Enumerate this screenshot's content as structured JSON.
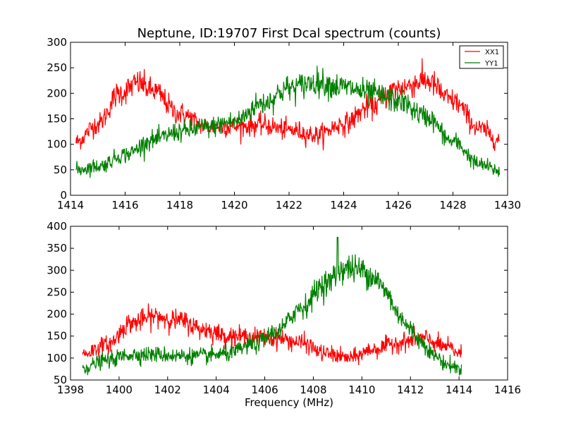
{
  "chart_data": [
    {
      "type": "line",
      "title": "Neptune, ID:19707 First Dcal spectrum (counts)",
      "xlabel": "",
      "ylabel": "",
      "xlim": [
        1414,
        1430
      ],
      "ylim": [
        0,
        300
      ],
      "xticks": [
        "1414",
        "1416",
        "1418",
        "1420",
        "1422",
        "1424",
        "1426",
        "1428",
        "1430"
      ],
      "yticks": [
        "0",
        "50",
        "100",
        "150",
        "200",
        "250",
        "300"
      ],
      "legend_position": "top-right",
      "grid": false,
      "x_start": 1414.2,
      "x_end": 1429.7,
      "noise": 9,
      "series": [
        {
          "name": "XX1",
          "color": "#ff0000",
          "anchors": [
            [
              1414.2,
              105
            ],
            [
              1415.0,
              140
            ],
            [
              1415.8,
              200
            ],
            [
              1416.5,
              220
            ],
            [
              1417.0,
              205
            ],
            [
              1418.0,
              160
            ],
            [
              1419.0,
              135
            ],
            [
              1420.0,
              135
            ],
            [
              1421.0,
              138
            ],
            [
              1422.0,
              128
            ],
            [
              1423.0,
              118
            ],
            [
              1424.0,
              140
            ],
            [
              1425.0,
              175
            ],
            [
              1426.0,
              210
            ],
            [
              1427.0,
              225
            ],
            [
              1428.0,
              185
            ],
            [
              1429.0,
              130
            ],
            [
              1429.7,
              108
            ]
          ]
        },
        {
          "name": "YY1",
          "color": "#007f00",
          "anchors": [
            [
              1414.2,
              50
            ],
            [
              1415.0,
              57
            ],
            [
              1416.0,
              80
            ],
            [
              1417.0,
              108
            ],
            [
              1418.0,
              125
            ],
            [
              1419.0,
              133
            ],
            [
              1420.0,
              145
            ],
            [
              1421.0,
              180
            ],
            [
              1422.0,
              210
            ],
            [
              1423.0,
              222
            ],
            [
              1424.0,
              212
            ],
            [
              1425.0,
              200
            ],
            [
              1426.0,
              185
            ],
            [
              1427.0,
              155
            ],
            [
              1428.0,
              105
            ],
            [
              1429.0,
              60
            ],
            [
              1429.7,
              48
            ]
          ]
        }
      ]
    },
    {
      "type": "line",
      "title": "",
      "xlabel": "Frequency (MHz)",
      "ylabel": "",
      "xlim": [
        1398,
        1416
      ],
      "ylim": [
        50,
        400
      ],
      "xticks": [
        "1398",
        "1400",
        "1402",
        "1404",
        "1406",
        "1408",
        "1410",
        "1412",
        "1414",
        "1416"
      ],
      "yticks": [
        "50",
        "100",
        "150",
        "200",
        "250",
        "300",
        "350",
        "400"
      ],
      "legend_position": "",
      "grid": false,
      "x_start": 1398.5,
      "x_end": 1414.1,
      "noise": 9,
      "series": [
        {
          "name": "XX1",
          "color": "#ff0000",
          "anchors": [
            [
              1398.5,
              110
            ],
            [
              1399.5,
              130
            ],
            [
              1400.5,
              180
            ],
            [
              1401.5,
              195
            ],
            [
              1402.5,
              185
            ],
            [
              1403.5,
              165
            ],
            [
              1404.5,
              150
            ],
            [
              1405.5,
              148
            ],
            [
              1406.5,
              145
            ],
            [
              1407.5,
              135
            ],
            [
              1408.5,
              110
            ],
            [
              1409.5,
              100
            ],
            [
              1410.5,
              120
            ],
            [
              1411.5,
              135
            ],
            [
              1412.5,
              145
            ],
            [
              1413.5,
              125
            ],
            [
              1414.1,
              110
            ]
          ]
        },
        {
          "name": "YY1",
          "color": "#007f00",
          "anchors": [
            [
              1398.5,
              78
            ],
            [
              1399.5,
              95
            ],
            [
              1400.5,
              108
            ],
            [
              1401.5,
              108
            ],
            [
              1402.5,
              105
            ],
            [
              1403.5,
              105
            ],
            [
              1404.5,
              110
            ],
            [
              1405.5,
              130
            ],
            [
              1406.5,
              160
            ],
            [
              1407.5,
              215
            ],
            [
              1408.5,
              270
            ],
            [
              1409.3,
              305
            ],
            [
              1410.0,
              300
            ],
            [
              1410.5,
              285
            ],
            [
              1411.0,
              250
            ],
            [
              1411.5,
              200
            ],
            [
              1412.0,
              165
            ],
            [
              1412.5,
              135
            ],
            [
              1413.0,
              105
            ],
            [
              1413.5,
              85
            ],
            [
              1414.1,
              75
            ]
          ]
        }
      ]
    }
  ]
}
